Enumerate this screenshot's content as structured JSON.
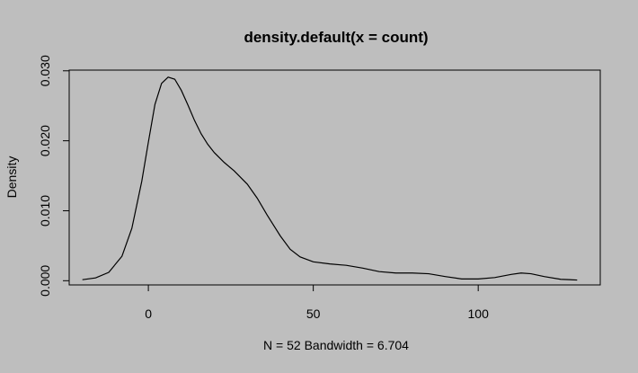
{
  "chart_data": {
    "type": "line",
    "title": "density.default(x = count)",
    "xlabel": "N = 52   Bandwidth = 6.704",
    "ylabel": "Density",
    "xlim": [
      -24,
      137
    ],
    "ylim": [
      -0.0006,
      0.0301
    ],
    "x_ticks": [
      0,
      50,
      100
    ],
    "x_tick_labels": [
      "0",
      "50",
      "100"
    ],
    "y_ticks": [
      0.0,
      0.01,
      0.02,
      0.03
    ],
    "y_tick_labels": [
      "0.000",
      "0.010",
      "0.020",
      "0.030"
    ],
    "grid": false,
    "series": [
      {
        "color": "#000000",
        "x": [
          -20,
          -16,
          -12,
          -8,
          -5,
          -2,
          0,
          2,
          4,
          6,
          8,
          10,
          12,
          14,
          16,
          18,
          20,
          23,
          26,
          30,
          33,
          36,
          40,
          43,
          46,
          50,
          55,
          60,
          65,
          70,
          75,
          80,
          85,
          90,
          95,
          100,
          105,
          110,
          113,
          116,
          120,
          125,
          130
        ],
        "y": [
          0.00015,
          0.0004,
          0.0012,
          0.0035,
          0.0075,
          0.0142,
          0.0198,
          0.0252,
          0.0282,
          0.0291,
          0.0288,
          0.0272,
          0.0251,
          0.0229,
          0.021,
          0.0195,
          0.0183,
          0.0169,
          0.0157,
          0.0138,
          0.0118,
          0.0094,
          0.0064,
          0.0045,
          0.0034,
          0.0027,
          0.0024,
          0.0022,
          0.0018,
          0.0013,
          0.0011,
          0.0011,
          0.001,
          0.0006,
          0.00025,
          0.00025,
          0.00045,
          0.0009,
          0.0011,
          0.001,
          0.0006,
          0.0002,
          0.0001
        ]
      }
    ]
  }
}
